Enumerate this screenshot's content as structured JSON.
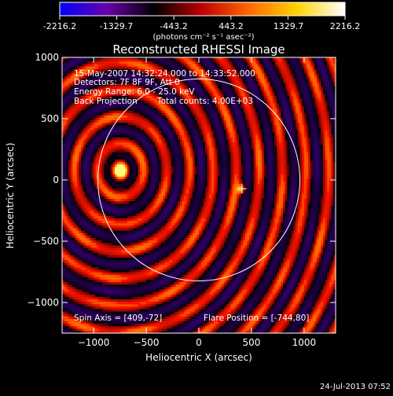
{
  "colorbar": {
    "ticks": [
      "-2216.2",
      "-1329.7",
      "-443.2",
      "443.2",
      "1329.7",
      "2216.2"
    ],
    "unit_label": "(photons cm⁻² s⁻¹ asec⁻²)",
    "gradient": [
      "#0000ff",
      "#6a00a8",
      "#000000",
      "#c00000",
      "#ff6a00",
      "#ffd400",
      "#ffffff"
    ]
  },
  "annotations": {
    "time_range": "15-May-2007 14:32:24.000 to 14:33:52.000",
    "detectors": "Detectors: 7F 8F 9F, Att 0",
    "energy": "Energy Range: 6.0 - 25.0 keV",
    "method": "Back Projection",
    "counts": "Total counts: 4.00E+03",
    "spin_axis": "Spin Axis = [409,-72]",
    "flare_position": "Flare Position = [-744,80]",
    "footer_date": "24-Jul-2013 07:52"
  },
  "chart_data": {
    "type": "heatmap",
    "title": "Reconstructed RHESSI Image",
    "xlabel": "Heliocentric X (arcsec)",
    "ylabel": "Heliocentric Y (arcsec)",
    "xlim": [
      -1300,
      1300
    ],
    "ylim": [
      -1250,
      1000
    ],
    "xticks": [
      -1000,
      -500,
      0,
      500,
      1000
    ],
    "yticks": [
      1000,
      500,
      0,
      -500,
      -1000
    ],
    "xtick_labels": [
      "−1000",
      "−500",
      "0",
      "500",
      "1000"
    ],
    "ytick_labels": [
      "1000",
      "500",
      "0",
      "−500",
      "−1000"
    ],
    "solar_disk": {
      "center": [
        0,
        0
      ],
      "radius": 960
    },
    "sources": [
      {
        "name": "main-source",
        "x": -744,
        "y": 80
      },
      {
        "name": "secondary-source",
        "x": 409,
        "y": -72
      }
    ],
    "markers": [
      {
        "name": "spin-axis-marker",
        "x": 409,
        "y": -72
      }
    ],
    "ring_spacing": 220
  }
}
